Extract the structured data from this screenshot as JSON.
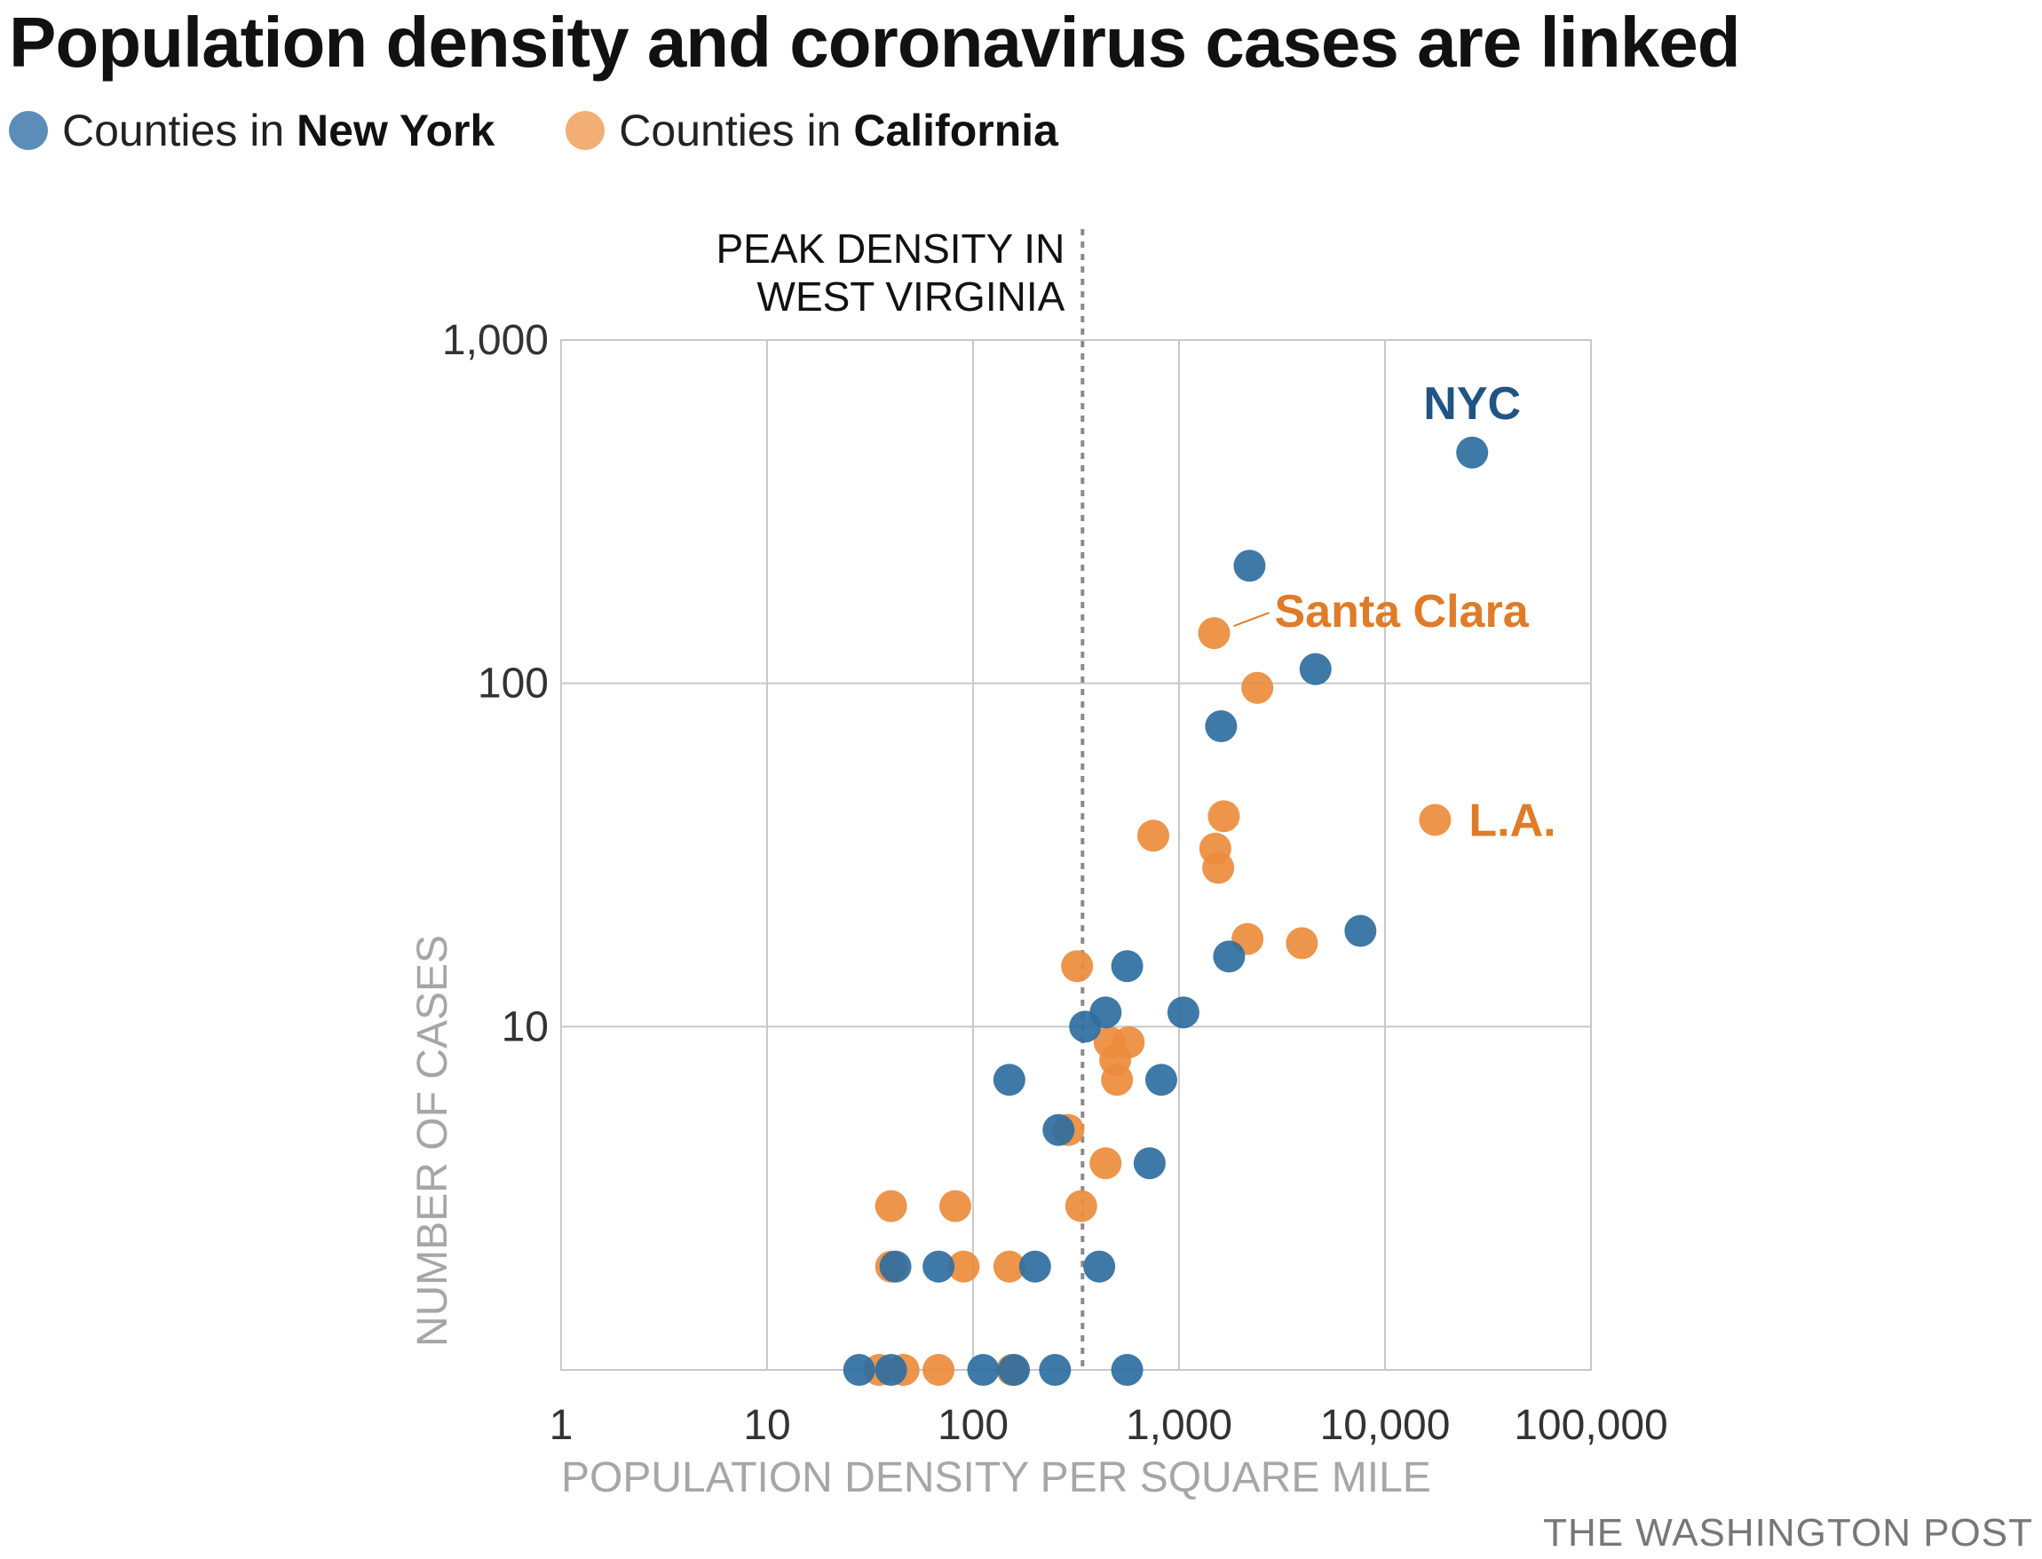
{
  "title": "Population density and coronavirus cases are linked",
  "legend": [
    {
      "prefix": "Counties in ",
      "name": "New York",
      "color": "#5b8db8"
    },
    {
      "prefix": "Counties in ",
      "name": "California",
      "color": "#f2ae74"
    }
  ],
  "credit": "THE WASHINGTON POST",
  "chart_data": {
    "type": "scatter",
    "xlabel": "POPULATION DENSITY PER SQUARE MILE",
    "ylabel": "NUMBER OF CASES",
    "xscale": "log",
    "yscale": "log",
    "xlim": [
      1,
      100000
    ],
    "ylim": [
      1,
      1000
    ],
    "x_ticks": [
      {
        "value": 1,
        "label": "1"
      },
      {
        "value": 10,
        "label": "10"
      },
      {
        "value": 100,
        "label": "100"
      },
      {
        "value": 1000,
        "label": "1,000"
      },
      {
        "value": 10000,
        "label": "10,000"
      },
      {
        "value": 100000,
        "label": "100,000"
      }
    ],
    "y_ticks": [
      {
        "value": 10,
        "label": "10"
      },
      {
        "value": 100,
        "label": "100"
      },
      {
        "value": 1000,
        "label": "1,000"
      }
    ],
    "grid": true,
    "reference_line": {
      "x": 340,
      "label_lines": [
        "PEAK DENSITY IN",
        "WEST VIRGINIA"
      ]
    },
    "series": [
      {
        "name": "Counties in California",
        "color": "#eb8c3c",
        "label_color": "#e07b27",
        "points": [
          {
            "x": 35,
            "y": 1
          },
          {
            "x": 46,
            "y": 1
          },
          {
            "x": 68,
            "y": 1
          },
          {
            "x": 155,
            "y": 1
          },
          {
            "x": 40,
            "y": 2
          },
          {
            "x": 90,
            "y": 2
          },
          {
            "x": 150,
            "y": 2
          },
          {
            "x": 40,
            "y": 3
          },
          {
            "x": 82,
            "y": 3
          },
          {
            "x": 335,
            "y": 3
          },
          {
            "x": 440,
            "y": 4
          },
          {
            "x": 290,
            "y": 5
          },
          {
            "x": 500,
            "y": 7
          },
          {
            "x": 490,
            "y": 8
          },
          {
            "x": 460,
            "y": 9
          },
          {
            "x": 570,
            "y": 9
          },
          {
            "x": 320,
            "y": 15
          },
          {
            "x": 2150,
            "y": 18
          },
          {
            "x": 3950,
            "y": 17.5
          },
          {
            "x": 1550,
            "y": 29
          },
          {
            "x": 1500,
            "y": 33
          },
          {
            "x": 750,
            "y": 36
          },
          {
            "x": 1650,
            "y": 41
          },
          {
            "x": 17500,
            "y": 40,
            "label": "L.A."
          },
          {
            "x": 2400,
            "y": 97
          },
          {
            "x": 1480,
            "y": 140,
            "label": "Santa Clara"
          }
        ]
      },
      {
        "name": "Counties in New York",
        "color": "#2f6e9f",
        "label_color": "#1f5485",
        "points": [
          {
            "x": 28,
            "y": 1
          },
          {
            "x": 40,
            "y": 1
          },
          {
            "x": 112,
            "y": 1
          },
          {
            "x": 158,
            "y": 1
          },
          {
            "x": 250,
            "y": 1
          },
          {
            "x": 560,
            "y": 1
          },
          {
            "x": 42,
            "y": 2
          },
          {
            "x": 68,
            "y": 2
          },
          {
            "x": 200,
            "y": 2
          },
          {
            "x": 410,
            "y": 2
          },
          {
            "x": 720,
            "y": 4
          },
          {
            "x": 260,
            "y": 5
          },
          {
            "x": 150,
            "y": 7
          },
          {
            "x": 820,
            "y": 7
          },
          {
            "x": 350,
            "y": 10
          },
          {
            "x": 440,
            "y": 11
          },
          {
            "x": 1050,
            "y": 11
          },
          {
            "x": 560,
            "y": 15
          },
          {
            "x": 1750,
            "y": 16
          },
          {
            "x": 7600,
            "y": 19
          },
          {
            "x": 1600,
            "y": 75
          },
          {
            "x": 4600,
            "y": 110
          },
          {
            "x": 2200,
            "y": 220
          },
          {
            "x": 26500,
            "y": 470,
            "label": "NYC"
          }
        ]
      }
    ]
  }
}
